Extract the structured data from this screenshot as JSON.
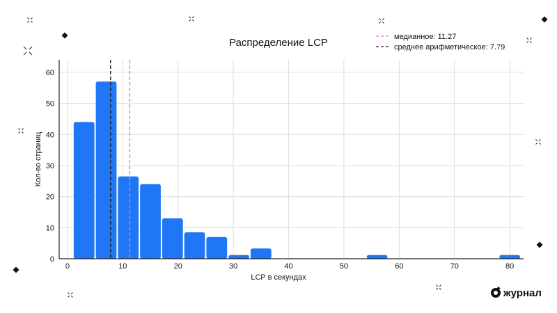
{
  "chart_data": {
    "type": "bar",
    "title": "Распределение LCP",
    "xlabel": "LCP в секундах",
    "ylabel": "Кол-во страниц",
    "xlim": [
      -1.5,
      82.5
    ],
    "ylim": [
      0,
      64
    ],
    "xticks": [
      0,
      10,
      20,
      30,
      40,
      50,
      60,
      70,
      80
    ],
    "yticks": [
      0,
      10,
      20,
      30,
      40,
      50,
      60
    ],
    "grid": true,
    "bin_width": 4,
    "bars": [
      {
        "x0": 1,
        "x1": 5,
        "value": 44
      },
      {
        "x0": 5,
        "x1": 9,
        "value": 57
      },
      {
        "x0": 9,
        "x1": 13,
        "value": 26.5
      },
      {
        "x0": 13,
        "x1": 17,
        "value": 24
      },
      {
        "x0": 17,
        "x1": 21,
        "value": 13
      },
      {
        "x0": 21,
        "x1": 25,
        "value": 8.5
      },
      {
        "x0": 25,
        "x1": 29,
        "value": 7
      },
      {
        "x0": 29,
        "x1": 33,
        "value": 1.2
      },
      {
        "x0": 33,
        "x1": 37,
        "value": 3.3
      },
      {
        "x0": 54,
        "x1": 58,
        "value": 1.2
      },
      {
        "x0": 78,
        "x1": 82,
        "value": 1.2
      }
    ],
    "bar_color": "#1f77f5",
    "reference_lines": [
      {
        "name": "медианное: 11.27",
        "value": 11.27,
        "color": "#f06af0",
        "style": "dashed"
      },
      {
        "name": "среднее арифметическое: 7.79",
        "value": 7.79,
        "color": "#222222",
        "style": "dashed"
      }
    ],
    "legend_position": "top-right"
  },
  "brand": {
    "name": "журнал",
    "icon": "journal-logo-icon"
  }
}
